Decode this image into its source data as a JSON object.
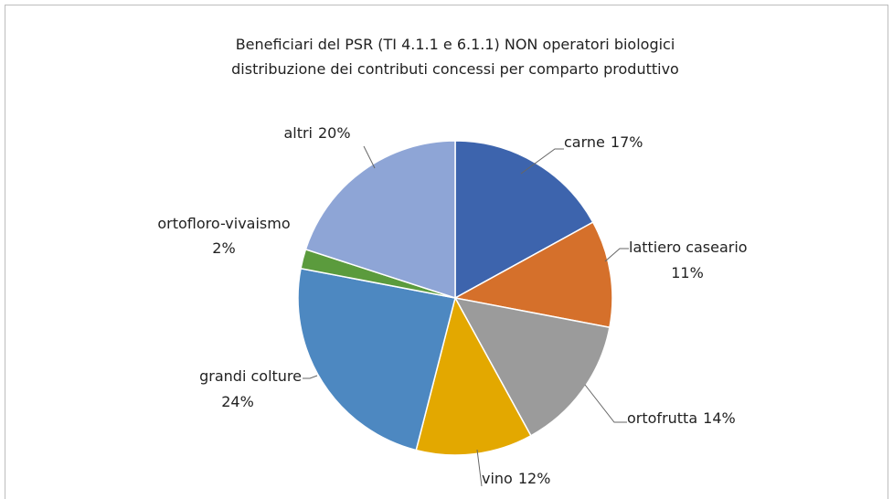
{
  "chart_data": {
    "type": "pie",
    "title": [
      "Beneficiari del PSR  (TI 4.1.1 e 6.1.1) NON operatori biologici",
      "distribuzione dei contributi concessi per comparto produttivo"
    ],
    "categories": [
      "carne",
      "lattiero caseario",
      "ortofrutta",
      "vino",
      "grandi colture",
      "ortofloro-vivaismo",
      "altri"
    ],
    "values": [
      17,
      11,
      14,
      12,
      24,
      2,
      20
    ],
    "value_labels": [
      "17%",
      "11%",
      "14%",
      "12%",
      "24%",
      "2%",
      "20%"
    ],
    "colors": [
      "#3d64ad",
      "#d5702b",
      "#9b9b9b",
      "#e3a800",
      "#4d88c1",
      "#5b9b3d",
      "#8ea5d6"
    ]
  }
}
